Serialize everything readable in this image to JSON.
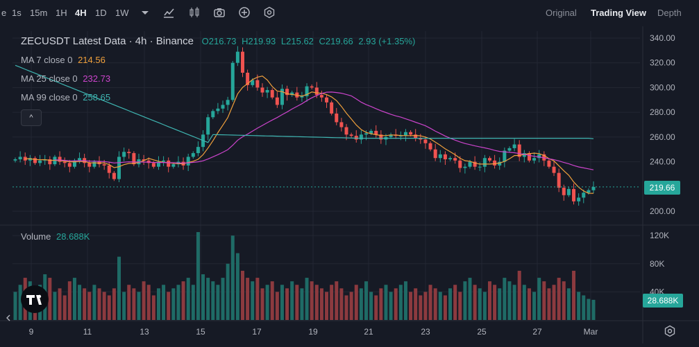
{
  "toolbar": {
    "timeframes": [
      {
        "label": "e",
        "active": false
      },
      {
        "label": "1s",
        "active": false
      },
      {
        "label": "15m",
        "active": false
      },
      {
        "label": "1H",
        "active": false
      },
      {
        "label": "4H",
        "active": true
      },
      {
        "label": "1D",
        "active": false
      },
      {
        "label": "1W",
        "active": false
      }
    ],
    "views": [
      {
        "label": "Original",
        "active": false
      },
      {
        "label": "Trading View",
        "active": true
      },
      {
        "label": "Depth",
        "active": false
      }
    ]
  },
  "legend": {
    "symbol": "ZECUSDT Latest Data · 4h · Binance",
    "ohlc": {
      "o": "O216.73",
      "h": "H219.93",
      "l": "L215.62",
      "c": "C219.66",
      "chg": "2.93 (+1.35%)"
    },
    "ma7": {
      "label": "MA 7 close 0",
      "value": "214.56"
    },
    "ma25": {
      "label": "MA 25 close 0",
      "value": "232.73"
    },
    "ma99": {
      "label": "MA 99 close 0",
      "value": "258.65"
    },
    "volume": {
      "label": "Volume",
      "value": "28.688K"
    },
    "collapse": "^"
  },
  "axes": {
    "price_ticks": [
      "340.00",
      "320.00",
      "300.00",
      "280.00",
      "260.00",
      "240.00",
      "200.00"
    ],
    "volume_ticks": [
      "120K",
      "80K",
      "40K"
    ],
    "time_ticks": [
      "9",
      "11",
      "13",
      "15",
      "17",
      "19",
      "21",
      "23",
      "25",
      "27",
      "Mar"
    ],
    "last_price_tag": "219.66",
    "last_volume_tag": "28.688K"
  },
  "colors": {
    "up": "#26a69a",
    "down": "#ef5350",
    "ma7": "#f0a03c",
    "ma25": "#cc44cc",
    "ma99": "#3fb6b2",
    "bg": "#161a25"
  },
  "chart_data": {
    "type": "candlestick",
    "interval": "4h",
    "price_range": [
      195,
      345
    ],
    "volume_range": [
      0,
      130000
    ],
    "candles_close": [
      242,
      244,
      241,
      243,
      239,
      241,
      242,
      238,
      244,
      240,
      239,
      236,
      241,
      243,
      239,
      236,
      240,
      238,
      237,
      231,
      226,
      244,
      248,
      247,
      238,
      242,
      241,
      239,
      236,
      240,
      241,
      236,
      238,
      240,
      237,
      244,
      247,
      252,
      262,
      276,
      281,
      283,
      286,
      290,
      320,
      329,
      312,
      302,
      306,
      300,
      296,
      298,
      292,
      286,
      299,
      294,
      296,
      292,
      293,
      301,
      300,
      294,
      292,
      288,
      279,
      272,
      268,
      262,
      261,
      258,
      262,
      263,
      265,
      262,
      258,
      260,
      262,
      261,
      261,
      264,
      262,
      259,
      258,
      255,
      250,
      243,
      246,
      242,
      243,
      241,
      235,
      236,
      240,
      236,
      236,
      243,
      241,
      237,
      240,
      249,
      251,
      254,
      244,
      247,
      241,
      243,
      246,
      241,
      236,
      231,
      219,
      213,
      218,
      208,
      211,
      215,
      217,
      219.66
    ],
    "volumes_k": [
      40,
      50,
      60,
      55,
      45,
      50,
      65,
      60,
      40,
      45,
      35,
      55,
      60,
      50,
      45,
      40,
      50,
      45,
      40,
      35,
      45,
      90,
      40,
      50,
      45,
      40,
      55,
      50,
      35,
      45,
      50,
      40,
      45,
      50,
      55,
      60,
      50,
      125,
      65,
      60,
      55,
      50,
      60,
      80,
      120,
      95,
      70,
      60,
      55,
      60,
      45,
      50,
      55,
      40,
      50,
      45,
      55,
      50,
      45,
      60,
      55,
      50,
      45,
      40,
      50,
      55,
      45,
      35,
      40,
      50,
      45,
      55,
      40,
      35,
      45,
      50,
      40,
      45,
      50,
      55,
      40,
      45,
      35,
      40,
      50,
      45,
      40,
      35,
      45,
      50,
      40,
      55,
      60,
      50,
      45,
      40,
      55,
      50,
      45,
      60,
      55,
      50,
      70,
      50,
      45,
      40,
      60,
      55,
      45,
      50,
      60,
      55,
      45,
      70,
      40,
      35,
      30,
      28.688
    ],
    "ma7_last": 214.56,
    "ma25_last": 232.73,
    "ma99_last": 258.65,
    "last_close": 219.66
  }
}
